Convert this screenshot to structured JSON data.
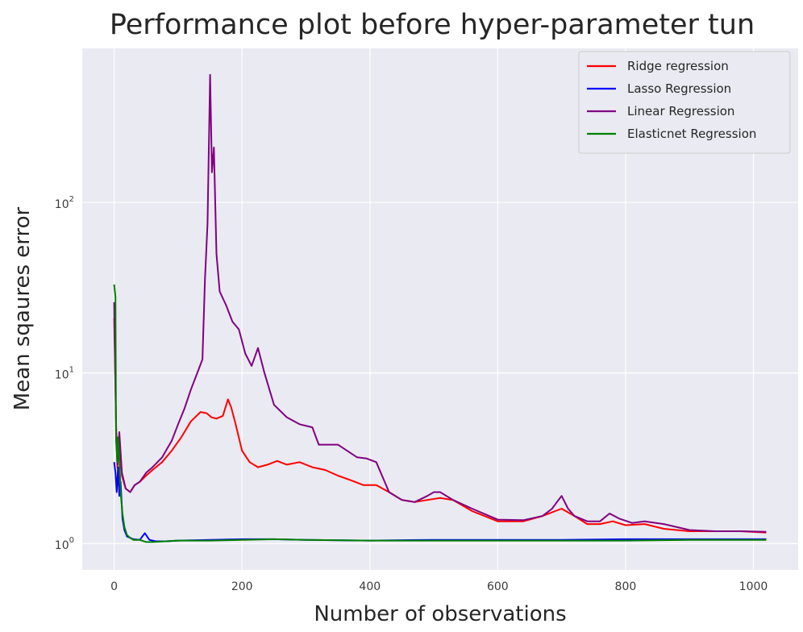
{
  "chart_data": {
    "type": "line",
    "title": "Performance plot before hyper-parameter tun",
    "xlabel": "Number of observations",
    "ylabel": "Mean sqaures error",
    "xlim": [
      -50,
      1070
    ],
    "ylim": [
      0.7,
      800
    ],
    "yscale": "log",
    "grid": true,
    "background": "#eaeaf2",
    "legend_position": "top-right",
    "x_ticks": [
      {
        "value": 0,
        "label": "0"
      },
      {
        "value": 200,
        "label": "200"
      },
      {
        "value": 400,
        "label": "400"
      },
      {
        "value": 600,
        "label": "600"
      },
      {
        "value": 800,
        "label": "800"
      },
      {
        "value": 1000,
        "label": "1000"
      }
    ],
    "y_ticks": [
      {
        "value": 1,
        "base": "10",
        "exp": "0"
      },
      {
        "value": 10,
        "base": "10",
        "exp": "1"
      },
      {
        "value": 100,
        "base": "10",
        "exp": "2"
      }
    ],
    "series": [
      {
        "name": "Ridge regression",
        "color": "#ff0000",
        "x": [
          0,
          3,
          5,
          8,
          12,
          18,
          25,
          32,
          40,
          50,
          60,
          75,
          90,
          105,
          120,
          135,
          145,
          152,
          160,
          170,
          178,
          183,
          190,
          200,
          212,
          225,
          240,
          255,
          270,
          290,
          310,
          330,
          350,
          370,
          390,
          410,
          430,
          450,
          470,
          490,
          510,
          530,
          560,
          600,
          640,
          670,
          690,
          700,
          720,
          740,
          760,
          780,
          800,
          830,
          860,
          900,
          940,
          980,
          1020
        ],
        "y": [
          21.0,
          5.0,
          2.8,
          4.2,
          2.5,
          2.1,
          2.0,
          2.2,
          2.3,
          2.5,
          2.7,
          3.0,
          3.5,
          4.2,
          5.2,
          5.9,
          5.8,
          5.5,
          5.4,
          5.6,
          7.0,
          6.3,
          5.0,
          3.5,
          3.0,
          2.8,
          2.9,
          3.05,
          2.9,
          3.0,
          2.8,
          2.7,
          2.5,
          2.35,
          2.2,
          2.2,
          2.0,
          1.8,
          1.75,
          1.8,
          1.85,
          1.8,
          1.55,
          1.35,
          1.35,
          1.45,
          1.55,
          1.6,
          1.45,
          1.3,
          1.3,
          1.35,
          1.28,
          1.3,
          1.22,
          1.18,
          1.18,
          1.18,
          1.16
        ]
      },
      {
        "name": "Lasso Regression",
        "color": "#0000ff",
        "x": [
          0,
          2,
          4,
          6,
          8,
          10,
          13,
          16,
          20,
          25,
          30,
          40,
          48,
          55,
          65,
          80,
          100,
          150,
          200,
          250,
          300,
          400,
          500,
          600,
          700,
          800,
          900,
          1020
        ],
        "y": [
          3.0,
          2.6,
          2.0,
          2.8,
          1.9,
          2.3,
          1.4,
          1.2,
          1.1,
          1.08,
          1.06,
          1.05,
          1.15,
          1.05,
          1.03,
          1.03,
          1.04,
          1.05,
          1.06,
          1.06,
          1.05,
          1.04,
          1.05,
          1.05,
          1.05,
          1.06,
          1.06,
          1.06
        ]
      },
      {
        "name": "Linear Regression",
        "color": "#800080",
        "x": [
          0,
          3,
          5,
          8,
          12,
          18,
          25,
          32,
          40,
          50,
          60,
          75,
          90,
          100,
          110,
          120,
          130,
          138,
          142,
          146,
          150,
          153,
          156,
          160,
          165,
          175,
          185,
          195,
          205,
          215,
          225,
          235,
          250,
          270,
          290,
          310,
          320,
          330,
          350,
          380,
          395,
          410,
          430,
          450,
          470,
          490,
          500,
          510,
          530,
          560,
          600,
          640,
          670,
          685,
          695,
          700,
          710,
          720,
          740,
          760,
          775,
          790,
          810,
          830,
          860,
          900,
          940,
          980,
          1020
        ],
        "y": [
          26.0,
          4.5,
          2.9,
          4.5,
          2.6,
          2.1,
          2.0,
          2.2,
          2.3,
          2.6,
          2.8,
          3.2,
          4.0,
          5.0,
          6.2,
          8.0,
          10.0,
          12.0,
          35.0,
          75.0,
          560.0,
          150.0,
          210.0,
          50.0,
          30.0,
          25.0,
          20.0,
          18.0,
          13.0,
          11.0,
          14.0,
          10.0,
          6.5,
          5.5,
          5.0,
          4.8,
          3.8,
          3.8,
          3.8,
          3.2,
          3.15,
          3.0,
          2.0,
          1.8,
          1.75,
          1.9,
          2.0,
          2.0,
          1.8,
          1.6,
          1.38,
          1.37,
          1.45,
          1.6,
          1.8,
          1.9,
          1.6,
          1.45,
          1.35,
          1.35,
          1.5,
          1.4,
          1.32,
          1.35,
          1.3,
          1.2,
          1.18,
          1.18,
          1.17
        ]
      },
      {
        "name": "Elasticnet Regression",
        "color": "#008000",
        "x": [
          0,
          2,
          3,
          5,
          6,
          8,
          10,
          13,
          16,
          20,
          25,
          30,
          40,
          50,
          60,
          80,
          100,
          150,
          200,
          250,
          300,
          400,
          500,
          600,
          700,
          800,
          900,
          1020
        ],
        "y": [
          33.0,
          28.0,
          4.0,
          3.0,
          4.2,
          3.2,
          2.0,
          1.5,
          1.25,
          1.12,
          1.08,
          1.05,
          1.05,
          1.02,
          1.02,
          1.03,
          1.04,
          1.04,
          1.05,
          1.06,
          1.05,
          1.04,
          1.04,
          1.04,
          1.04,
          1.04,
          1.05,
          1.05
        ]
      }
    ]
  }
}
